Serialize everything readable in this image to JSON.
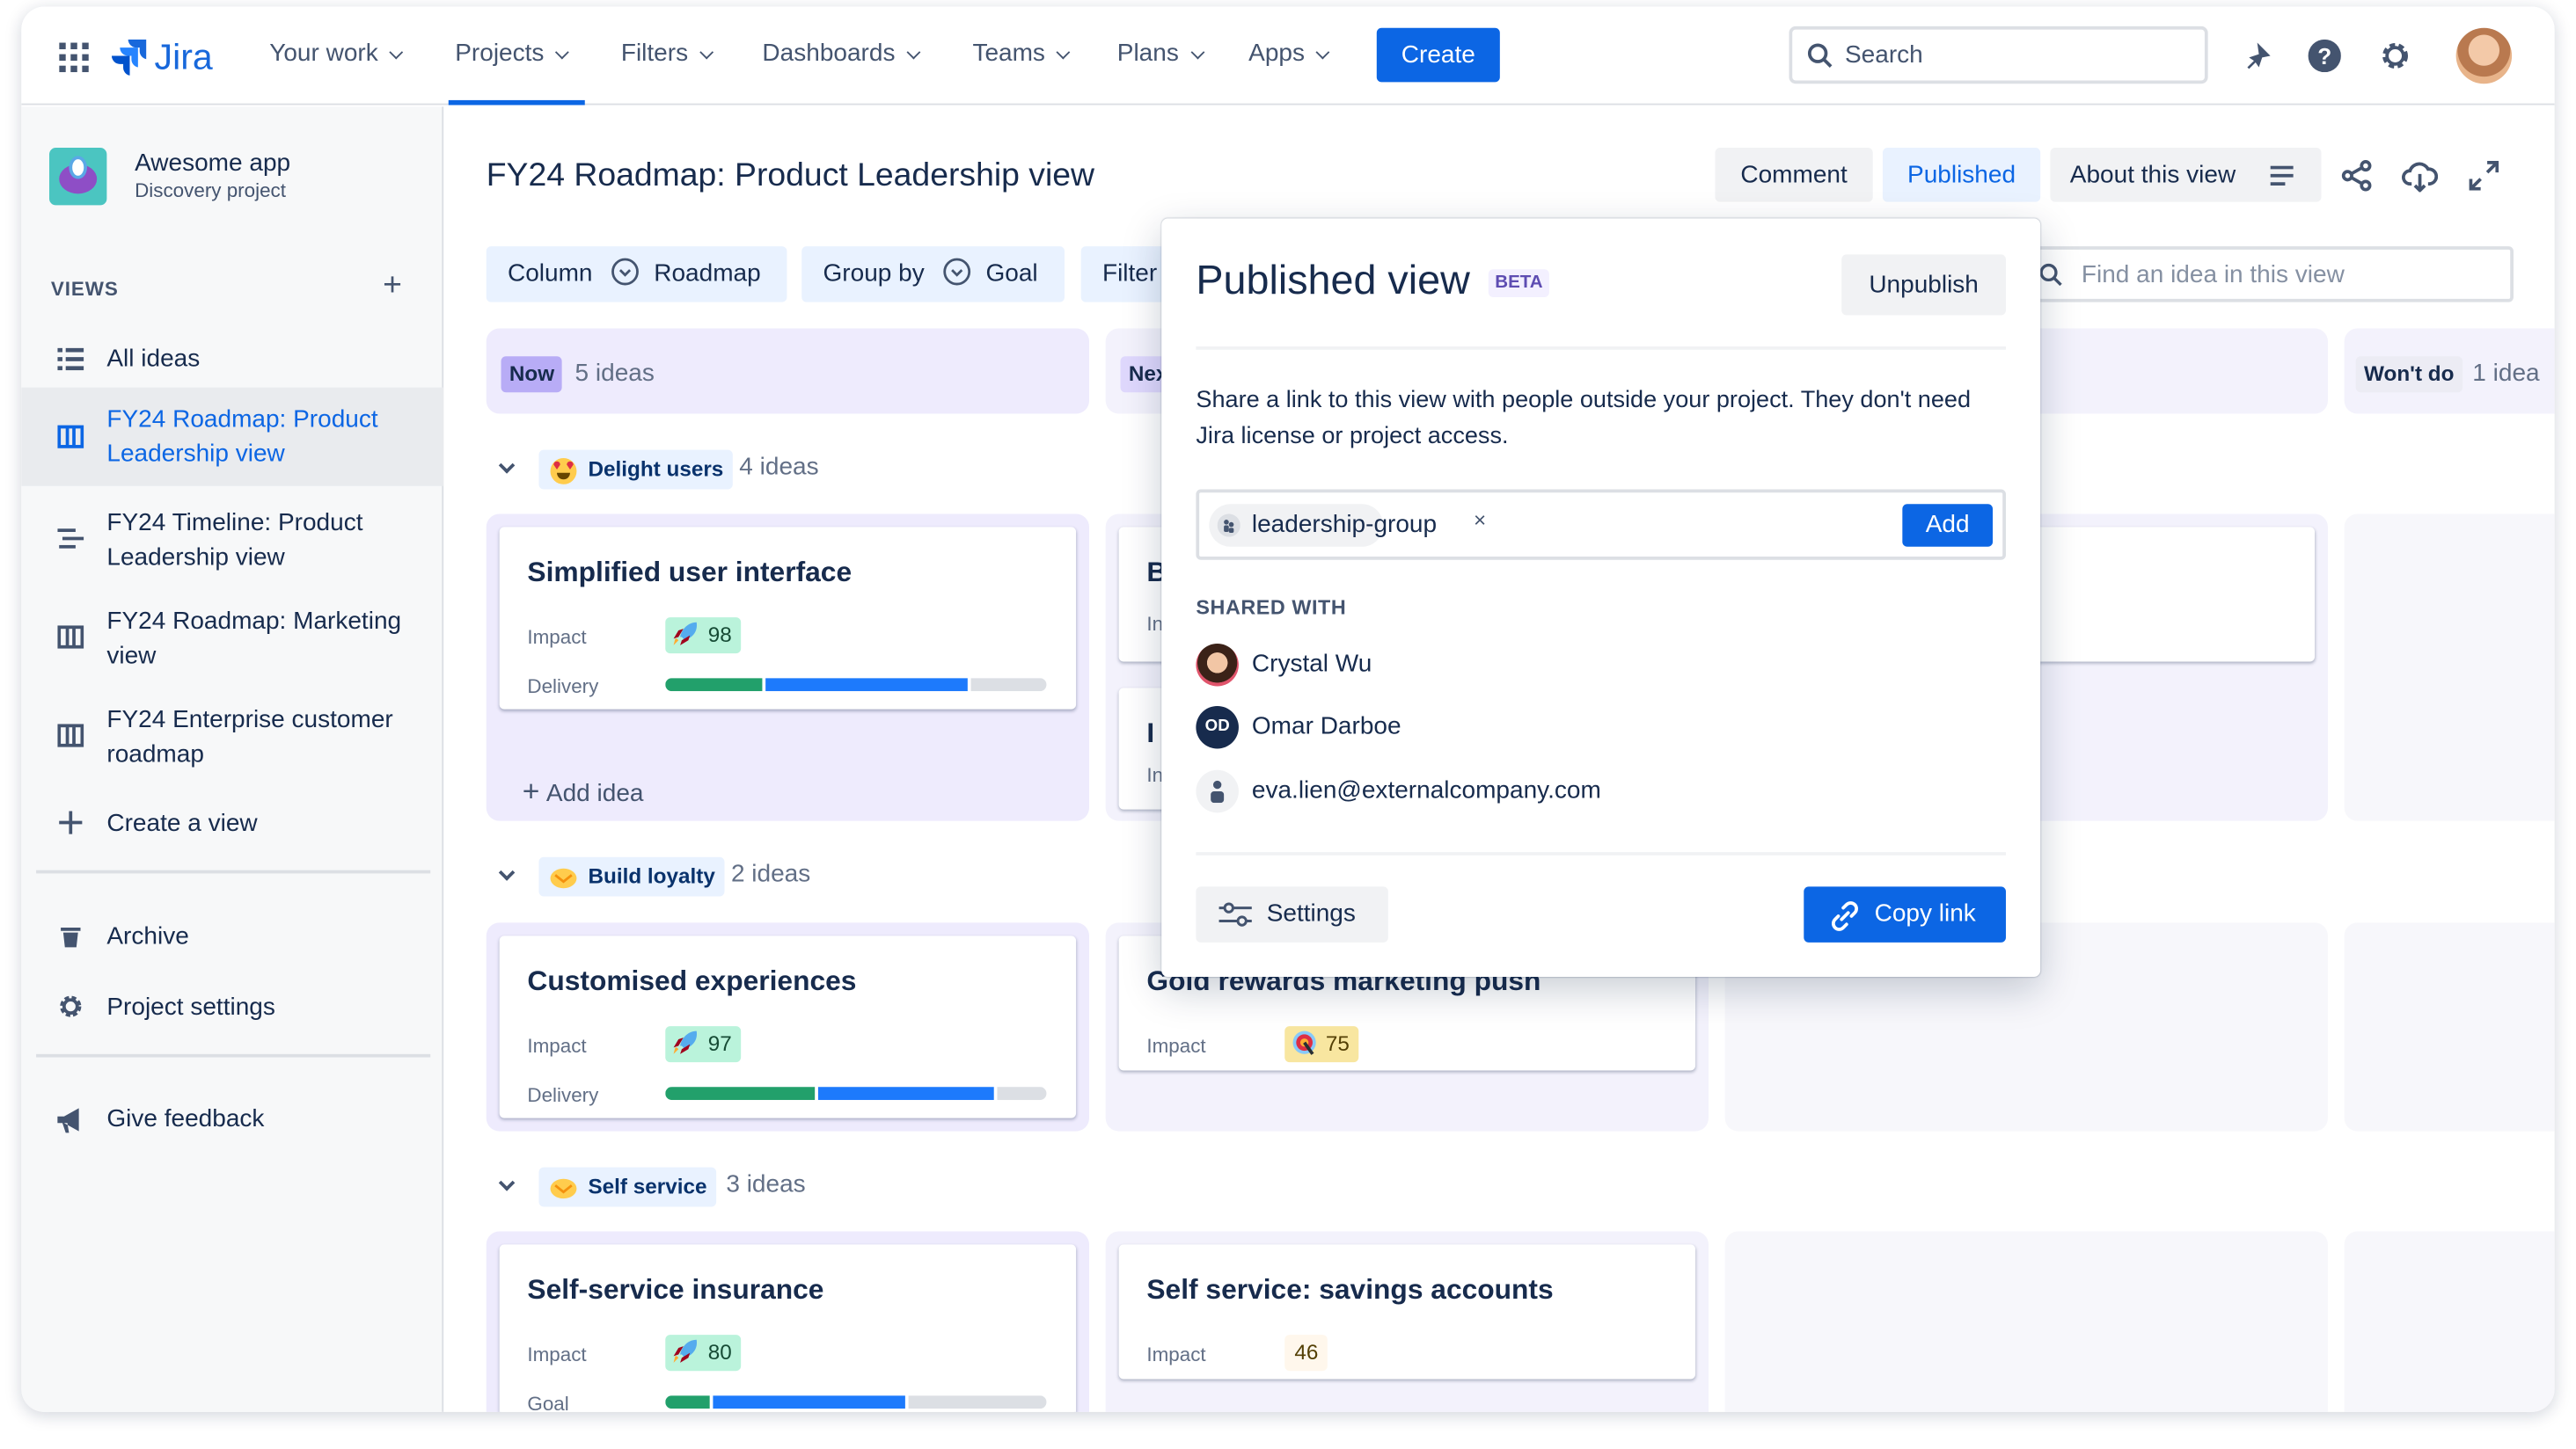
{
  "nav": {
    "logo": "Jira",
    "items": [
      "Your work",
      "Projects",
      "Filters",
      "Dashboards",
      "Teams",
      "Plans",
      "Apps"
    ],
    "active": "Projects",
    "create_label": "Create",
    "search_placeholder": "Search"
  },
  "sidebar": {
    "project_name": "Awesome app",
    "project_type": "Discovery project",
    "views_label": "VIEWS",
    "items": [
      {
        "label": "All ideas",
        "icon": "list-icon"
      },
      {
        "label": "FY24 Roadmap: Product Leadership view",
        "icon": "board-icon",
        "selected": true
      },
      {
        "label": "FY24 Timeline: Product Leadership view",
        "icon": "timeline-icon"
      },
      {
        "label": "FY24 Roadmap: Marketing view",
        "icon": "board-icon"
      },
      {
        "label": "FY24 Enterprise customer roadmap",
        "icon": "board-icon"
      },
      {
        "label": "Create a view",
        "icon": "plus-icon"
      }
    ],
    "archive": "Archive",
    "project_settings": "Project settings",
    "feedback": "Give feedback"
  },
  "header": {
    "title": "FY24 Roadmap: Product Leadership view",
    "comment": "Comment",
    "published": "Published",
    "about": "About this view"
  },
  "toolbar": {
    "column_label": "Column",
    "column_value": "Roadmap",
    "group_label": "Group by",
    "group_value": "Goal",
    "filter_label": "Filter",
    "find_placeholder": "Find an idea in this view"
  },
  "columns": [
    {
      "label": "Now",
      "count": "5 ideas"
    },
    {
      "label": "Nex"
    },
    {
      "label": ""
    },
    {
      "label": "Won't do",
      "count": "1 idea"
    }
  ],
  "groups": [
    {
      "label": "Delight users",
      "count": "4 ideas",
      "emoji": "heart-eyes"
    },
    {
      "label": "Build loyalty",
      "count": "2 ideas",
      "emoji": "handshake"
    },
    {
      "label": "Self service",
      "count": "3 ideas",
      "emoji": "handshake"
    }
  ],
  "cards": {
    "c1": {
      "title": "Simplified user interface",
      "impact_label": "Impact",
      "impact": "98",
      "impact_icon": "rocket",
      "bar_label": "Delivery",
      "bar": [
        26,
        54,
        20
      ]
    },
    "c2": {
      "title": "B",
      "impact_label": "In"
    },
    "c3": {
      "title": "I",
      "impact_label": "In"
    },
    "c4": {
      "title": "Customised experiences",
      "impact_label": "Impact",
      "impact": "97",
      "impact_icon": "rocket",
      "bar_label": "Delivery",
      "bar": [
        40,
        47,
        13
      ]
    },
    "c5": {
      "title": "Gold rewards marketing push",
      "impact_label": "Impact",
      "impact": "75",
      "impact_icon": "target"
    },
    "c6": {
      "title": "Self-service insurance",
      "impact_label": "Impact",
      "impact": "80",
      "impact_icon": "rocket",
      "bar_label": "Goal",
      "bar": [
        12,
        51,
        37
      ]
    },
    "c7": {
      "title": "Self service: savings accounts",
      "impact_label": "Impact",
      "impact": "46"
    }
  },
  "add_idea": "Add idea",
  "bar_colors": {
    "done": "#22a06b",
    "in_progress": "#1d7afc",
    "todo": "#dcdfe4"
  },
  "popover": {
    "title": "Published view",
    "beta": "BETA",
    "unpublish": "Unpublish",
    "description": "Share a link to this view with people outside your project. They don't need Jira license or project access.",
    "tag": "leadership-group",
    "add": "Add",
    "shared_with": "SHARED WITH",
    "people": [
      {
        "name": "Crystal Wu",
        "avatar": "photo"
      },
      {
        "name": "Omar Darboe",
        "initials": "OD"
      },
      {
        "name": "eva.lien@externalcompany.com",
        "avatar": "generic-person"
      }
    ],
    "settings": "Settings",
    "copy_link": "Copy link"
  },
  "colors": {
    "primary": "#0c66e4",
    "text": "#172b4d",
    "now_lane": "#eeebfd"
  }
}
